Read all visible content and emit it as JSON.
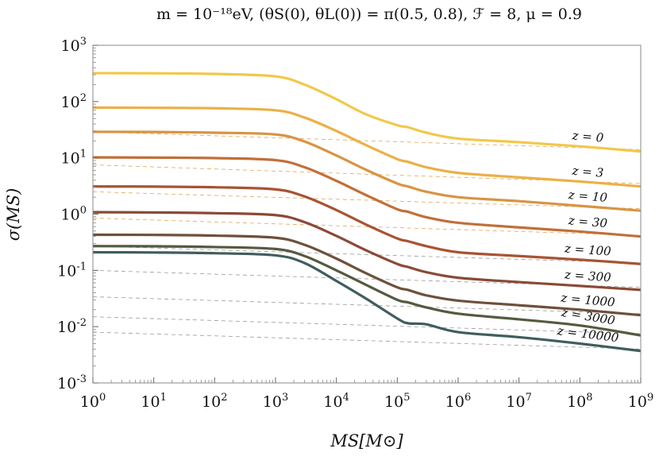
{
  "chart_data": {
    "type": "line",
    "title": "m = 10⁻¹⁸eV, (θS(0), θL(0)) = π(0.5, 0.8), ℱ = 8, μ = 0.9",
    "xlabel": "MS[M⊙]",
    "ylabel": "σ(MS)",
    "x_scale": "log",
    "y_scale": "log",
    "xlim": [
      1,
      1000000000
    ],
    "ylim": [
      0.001,
      1000
    ],
    "x_ticks": [
      "10^0",
      "10^1",
      "10^2",
      "10^3",
      "10^4",
      "10^5",
      "10^6",
      "10^7",
      "10^8",
      "10^9"
    ],
    "y_ticks": [
      "10^-3",
      "10^-2",
      "10^-1",
      "10^0",
      "10^1",
      "10^2",
      "10^3"
    ],
    "grid": false,
    "x": [
      1,
      10,
      100,
      1000,
      3000,
      10000,
      30000,
      100000,
      150000,
      300000,
      1000000,
      10000000,
      100000000,
      1000000000
    ],
    "series": [
      {
        "name": "z = 0",
        "color": "#f2c84b",
        "values": [
          320,
          318,
          310,
          280,
          200,
          110,
          60,
          38,
          35,
          28,
          22,
          19,
          16,
          13
        ]
      },
      {
        "name": "z = 3",
        "color": "#ebb047",
        "values": [
          78,
          77.5,
          76,
          70,
          52,
          30,
          17,
          9.5,
          8.5,
          6.8,
          5.4,
          4.5,
          3.8,
          3.1
        ]
      },
      {
        "name": "z = 10",
        "color": "#d89442",
        "values": [
          29,
          28.8,
          28,
          26,
          19.5,
          11,
          6.2,
          3.5,
          3.1,
          2.5,
          2.0,
          1.7,
          1.4,
          1.15
        ]
      },
      {
        "name": "z = 30",
        "color": "#c26f37",
        "values": [
          10.2,
          10.1,
          9.9,
          9.1,
          6.8,
          3.9,
          2.2,
          1.22,
          1.1,
          0.88,
          0.7,
          0.58,
          0.49,
          0.4
        ]
      },
      {
        "name": "z = 100",
        "color": "#a85333",
        "values": [
          3.1,
          3.08,
          3.0,
          2.75,
          2.06,
          1.18,
          0.66,
          0.37,
          0.33,
          0.27,
          0.21,
          0.18,
          0.155,
          0.13
        ]
      },
      {
        "name": "z = 300",
        "color": "#8a4a36",
        "values": [
          1.08,
          1.07,
          1.04,
          0.96,
          0.72,
          0.41,
          0.23,
          0.13,
          0.115,
          0.093,
          0.074,
          0.062,
          0.053,
          0.045
        ]
      },
      {
        "name": "z = 1000",
        "color": "#6e503b",
        "values": [
          0.43,
          0.427,
          0.415,
          0.38,
          0.285,
          0.162,
          0.09,
          0.05,
          0.045,
          0.036,
          0.029,
          0.024,
          0.02,
          0.016
        ]
      },
      {
        "name": "z = 3000",
        "color": "#555a3f",
        "values": [
          0.27,
          0.268,
          0.26,
          0.24,
          0.18,
          0.1,
          0.056,
          0.03,
          0.027,
          0.022,
          0.017,
          0.0135,
          0.0105,
          0.007
        ]
      },
      {
        "name": "z = 10000",
        "color": "#3f5e5c",
        "values": [
          0.21,
          0.208,
          0.202,
          0.185,
          0.135,
          0.065,
          0.032,
          0.014,
          0.0115,
          0.011,
          0.008,
          0.0065,
          0.005,
          0.0037
        ]
      }
    ],
    "reference_lines": [
      {
        "style": "dashed",
        "values": [
          29,
          14
        ]
      },
      {
        "style": "dashed",
        "values": [
          7.5,
          3.5
        ]
      },
      {
        "style": "dashed",
        "values": [
          2.5,
          1.25
        ]
      },
      {
        "style": "dashed",
        "values": [
          0.85,
          0.42
        ]
      },
      {
        "style": "dashed",
        "values": [
          0.27,
          0.135
        ]
      },
      {
        "style": "dashed",
        "values": [
          0.1,
          0.05
        ]
      },
      {
        "style": "dashed",
        "values": [
          0.034,
          0.017
        ]
      },
      {
        "style": "dashed",
        "values": [
          0.015,
          0.0075
        ]
      },
      {
        "style": "dashed",
        "values": [
          0.008,
          0.004
        ]
      }
    ]
  }
}
